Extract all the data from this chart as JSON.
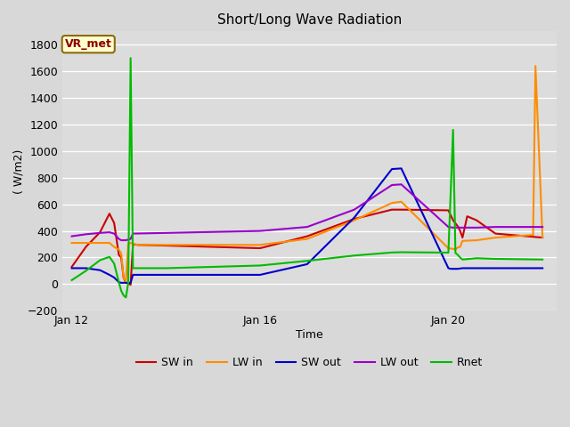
{
  "title": "Short/Long Wave Radiation",
  "xlabel": "Time",
  "ylabel": "( W/m2)",
  "ylim": [
    -200,
    1900
  ],
  "yticks": [
    -200,
    0,
    200,
    400,
    600,
    800,
    1000,
    1200,
    1400,
    1600,
    1800
  ],
  "background_color": "#dcdcdc",
  "plot_bg_color": "#dcdcdc",
  "label_box": "VR_met",
  "series": {
    "SW_in": {
      "color": "#cc0000",
      "x": [
        0,
        0.3,
        0.6,
        0.8,
        0.9,
        1.0,
        1.05,
        1.1,
        1.15,
        1.2,
        1.25,
        1.3,
        1.4,
        2.0,
        4.0,
        5.0,
        6.0,
        6.8,
        7.0,
        8.0,
        8.1,
        8.2,
        8.25,
        8.3,
        8.4,
        8.6,
        8.8,
        9.0,
        10.0
      ],
      "y": [
        130,
        280,
        390,
        530,
        460,
        220,
        200,
        50,
        10,
        5,
        -5,
        300,
        295,
        290,
        270,
        360,
        490,
        560,
        560,
        555,
        480,
        435,
        400,
        350,
        510,
        480,
        430,
        380,
        350
      ]
    },
    "LW_in": {
      "color": "#ff8c00",
      "x": [
        0,
        0.3,
        0.6,
        0.8,
        0.9,
        1.0,
        1.05,
        1.1,
        1.15,
        1.2,
        1.25,
        1.3,
        1.4,
        2.0,
        4.0,
        5.0,
        6.0,
        6.8,
        7.0,
        8.0,
        8.1,
        8.15,
        8.2,
        8.25,
        8.3,
        8.6,
        9.0,
        9.8,
        9.85,
        10.0
      ],
      "y": [
        310,
        310,
        310,
        310,
        280,
        260,
        230,
        50,
        20,
        300,
        310,
        305,
        295,
        295,
        295,
        340,
        480,
        610,
        620,
        270,
        265,
        260,
        275,
        280,
        325,
        330,
        350,
        370,
        1640,
        350
      ]
    },
    "SW_out": {
      "color": "#0000cc",
      "x": [
        0,
        0.3,
        0.6,
        0.8,
        0.9,
        1.0,
        1.05,
        1.1,
        1.15,
        1.2,
        1.25,
        1.3,
        2.0,
        4.0,
        5.0,
        6.0,
        6.8,
        7.0,
        8.0,
        8.05,
        8.1,
        8.15,
        8.2,
        8.3,
        8.6,
        9.0,
        10.0
      ],
      "y": [
        120,
        120,
        105,
        70,
        50,
        15,
        10,
        10,
        10,
        10,
        10,
        70,
        70,
        70,
        150,
        500,
        865,
        870,
        120,
        115,
        115,
        115,
        115,
        120,
        120,
        120,
        120
      ]
    },
    "LW_out": {
      "color": "#9900cc",
      "x": [
        0,
        0.3,
        0.6,
        0.8,
        0.9,
        1.0,
        1.05,
        1.1,
        1.15,
        1.2,
        1.25,
        1.3,
        2.0,
        4.0,
        5.0,
        6.0,
        6.8,
        7.0,
        8.0,
        8.1,
        8.3,
        8.6,
        9.0,
        10.0
      ],
      "y": [
        360,
        375,
        385,
        390,
        380,
        340,
        330,
        330,
        330,
        335,
        340,
        380,
        385,
        400,
        430,
        560,
        745,
        750,
        430,
        425,
        425,
        425,
        430,
        430
      ]
    },
    "Rnet": {
      "color": "#00bb00",
      "x": [
        0,
        0.3,
        0.6,
        0.8,
        0.9,
        1.0,
        1.05,
        1.1,
        1.15,
        1.2,
        1.25,
        1.3,
        2.0,
        4.0,
        5.0,
        6.0,
        6.8,
        7.0,
        8.0,
        8.1,
        8.15,
        8.2,
        8.25,
        8.3,
        8.6,
        9.0,
        10.0
      ],
      "y": [
        30,
        100,
        180,
        205,
        155,
        15,
        -50,
        -85,
        -100,
        10,
        1700,
        120,
        120,
        140,
        175,
        215,
        238,
        240,
        237,
        1160,
        235,
        220,
        200,
        185,
        195,
        190,
        185
      ]
    }
  },
  "x_tick_positions": [
    0,
    4,
    8
  ],
  "x_tick_labels": [
    "Jan 12",
    "Jan 16",
    "Jan 20"
  ],
  "xlim": [
    -0.2,
    10.3
  ]
}
